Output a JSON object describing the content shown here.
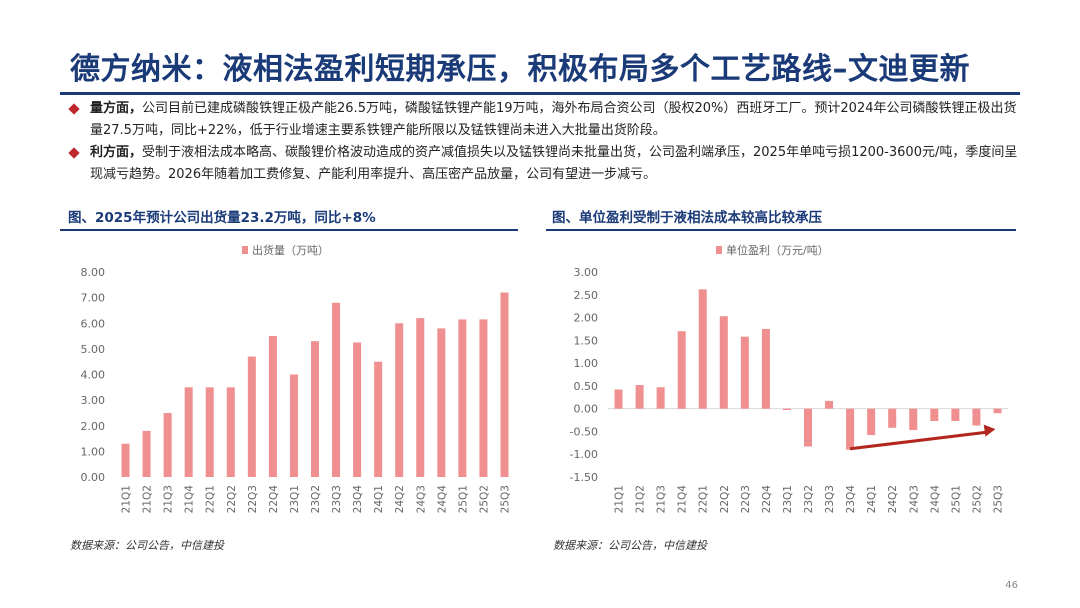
{
  "header": {
    "title": "德方纳米：液相法盈利短期承压，积极布局多个工艺路线–文迪更新"
  },
  "bullets": [
    {
      "lead": "量方面，",
      "text": "公司目前已建成磷酸铁锂正极产能26.5万吨，磷酸锰铁锂产能19万吨，海外布局合资公司（股权20%）西班牙工厂。预计2024年公司磷酸铁锂正极出货量27.5万吨，同比+22%，低于行业增速主要系铁锂产能所限以及锰铁锂尚未进入大批量出货阶段。"
    },
    {
      "lead": "利方面，",
      "text": "受制于液相法成本略高、碳酸锂价格波动造成的资产减值损失以及锰铁锂尚未批量出货，公司盈利端承压，2025年单吨亏损1200-3600元/吨，季度间呈现减亏趋势。2026年随着加工费修复、产能利用率提升、高压密产品放量，公司有望进一步减亏。"
    }
  ],
  "colors": {
    "title": "#1a3a78",
    "bar": "#ef8f8f",
    "arrow": "#b3261e",
    "bullet": "#c0272d"
  },
  "charts": {
    "left": {
      "title": "图、2025年预计公司出货量23.2万吨，同比+8%",
      "source": "数据来源：公司公告，中信建投"
    },
    "right": {
      "title": "图、单位盈利受制于液相法成本较高比较承压",
      "source": "数据来源：公司公告，中信建投"
    }
  },
  "page_number": "46",
  "chart_data": [
    {
      "type": "bar",
      "title": "图、2025年预计公司出货量23.2万吨，同比+8%",
      "legend": "top-center",
      "categories": [
        "21Q1",
        "21Q2",
        "21Q3",
        "21Q4",
        "22Q1",
        "22Q2",
        "22Q3",
        "22Q4",
        "23Q1",
        "23Q2",
        "23Q3",
        "23Q4",
        "24Q1",
        "24Q2",
        "24Q3",
        "24Q4",
        "25Q1",
        "25Q2",
        "25Q3"
      ],
      "series": [
        {
          "name": "出货量（万吨）",
          "values": [
            1.3,
            1.8,
            2.5,
            3.5,
            3.5,
            3.5,
            4.7,
            5.5,
            4.0,
            5.3,
            6.8,
            5.25,
            4.5,
            6.0,
            6.2,
            5.8,
            6.15,
            6.15,
            7.2
          ]
        }
      ],
      "ylim": [
        0,
        8
      ],
      "yticks": [
        "0.00",
        "1.00",
        "2.00",
        "3.00",
        "4.00",
        "5.00",
        "6.00",
        "7.00",
        "8.00"
      ],
      "grid": false
    },
    {
      "type": "bar",
      "title": "图、单位盈利受制于液相法成本较高比较承压",
      "legend": "top-center",
      "categories": [
        "21Q1",
        "21Q2",
        "21Q3",
        "21Q4",
        "22Q1",
        "22Q2",
        "22Q3",
        "22Q4",
        "23Q1",
        "23Q2",
        "23Q3",
        "23Q4",
        "24Q1",
        "24Q2",
        "24Q3",
        "24Q4",
        "25Q1",
        "25Q2",
        "25Q3"
      ],
      "series": [
        {
          "name": "单位盈利（万元/吨）",
          "values": [
            0.42,
            0.52,
            0.47,
            1.7,
            2.62,
            2.03,
            1.58,
            1.75,
            -0.03,
            -0.83,
            0.17,
            -0.9,
            -0.58,
            -0.42,
            -0.47,
            -0.27,
            -0.27,
            -0.37,
            -0.1
          ]
        }
      ],
      "ylim": [
        -1.5,
        3.0
      ],
      "yticks": [
        "-1.50",
        "-1.00",
        "-0.50",
        "0.00",
        "0.50",
        "1.00",
        "1.50",
        "2.00",
        "2.50",
        "3.00"
      ],
      "annotations": [
        "upward trend arrow from 23Q4 to 25Q3"
      ],
      "grid": false
    }
  ]
}
